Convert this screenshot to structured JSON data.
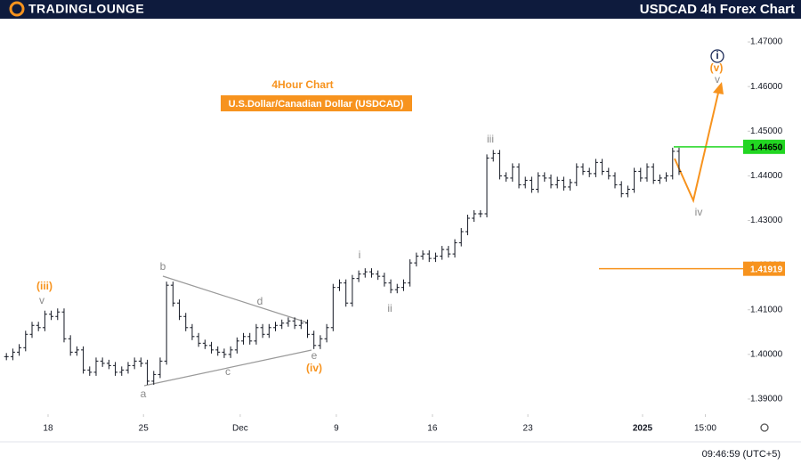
{
  "chart_data": {
    "type": "ohlc",
    "brand": "TRADINGLOUNGE",
    "title": "USDCAD 4h Forex Chart",
    "subtitle": "4Hour Chart",
    "instrument": "U.S.Dollar/Canadian Dollar (USDCAD)",
    "timestamp": "09:46:59 (UTC+5)",
    "color": "#131722",
    "values": [
      1.3995,
      1.4005,
      1.4015,
      1.4045,
      1.4065,
      1.406,
      1.409,
      1.4085,
      1.4095,
      1.4035,
      1.4005,
      1.401,
      1.3965,
      1.396,
      1.3985,
      1.398,
      1.3975,
      1.396,
      1.3965,
      1.3975,
      1.3985,
      1.398,
      1.394,
      1.3955,
      1.3985,
      1.4155,
      1.4115,
      1.4085,
      1.406,
      1.404,
      1.4025,
      1.402,
      1.401,
      1.4005,
      1.4,
      1.401,
      1.403,
      1.404,
      1.403,
      1.406,
      1.4045,
      1.406,
      1.4065,
      1.407,
      1.4075,
      1.4065,
      1.407,
      1.4045,
      1.402,
      1.4035,
      1.406,
      1.415,
      1.416,
      1.4115,
      1.417,
      1.418,
      1.4185,
      1.418,
      1.4175,
      1.416,
      1.4145,
      1.415,
      1.416,
      1.4205,
      1.422,
      1.4225,
      1.4215,
      1.422,
      1.4235,
      1.4225,
      1.425,
      1.4275,
      1.4305,
      1.4315,
      1.4315,
      1.444,
      1.445,
      1.44,
      1.4395,
      1.442,
      1.438,
      1.439,
      1.437,
      1.44,
      1.4395,
      1.438,
      1.439,
      1.4375,
      1.4385,
      1.442,
      1.441,
      1.4405,
      1.443,
      1.441,
      1.44,
      1.438,
      1.436,
      1.437,
      1.441,
      1.4395,
      1.442,
      1.439,
      1.4395,
      1.44,
      1.4455,
      1.441
    ],
    "xlim": [
      -1,
      115.7
    ],
    "xticks": [
      {
        "value": 6.5,
        "label": "18"
      },
      {
        "value": 21.4,
        "label": "25"
      },
      {
        "value": 36.5,
        "label": "Dec"
      },
      {
        "value": 51.5,
        "label": "9"
      },
      {
        "value": 66.5,
        "label": "16"
      },
      {
        "value": 81.4,
        "label": "23"
      },
      {
        "value": 99.3,
        "label": "2025"
      },
      {
        "value": 109.1,
        "label": "15:00"
      }
    ],
    "ylim": [
      1.3866,
      1.4754
    ],
    "yticks": [
      {
        "value": 1.39,
        "label": "1.39000"
      },
      {
        "value": 1.4,
        "label": "1.40000"
      },
      {
        "value": 1.41,
        "label": "1.41000"
      },
      {
        "value": 1.42,
        "label": "1.42000"
      },
      {
        "value": 1.43,
        "label": "1.43000"
      },
      {
        "value": 1.44,
        "label": "1.44000"
      },
      {
        "value": 1.45,
        "label": "1.45000"
      },
      {
        "value": 1.46,
        "label": "1.46000"
      },
      {
        "value": 1.47,
        "label": "1.47000"
      }
    ],
    "levels": [
      {
        "value": 1.4465,
        "label": "1.44650",
        "color": "#22d622"
      },
      {
        "value": 1.41919,
        "label": "1.41919",
        "color": "#f7931e"
      }
    ],
    "wave_labels": [
      {
        "text": "(iii)",
        "color": "#f7931e"
      },
      {
        "text": "v",
        "color": "#8a8a8a"
      },
      {
        "text": "b",
        "color": "#8a8a8a"
      },
      {
        "text": "a",
        "color": "#8a8a8a"
      },
      {
        "text": "c",
        "color": "#8a8a8a"
      },
      {
        "text": "d",
        "color": "#8a8a8a"
      },
      {
        "text": "e",
        "color": "#8a8a8a"
      },
      {
        "text": "(iv)",
        "color": "#f7931e"
      },
      {
        "text": "i",
        "color": "#8a8a8a"
      },
      {
        "text": "ii",
        "color": "#8a8a8a"
      },
      {
        "text": "iii",
        "color": "#8a8a8a"
      },
      {
        "text": "iv",
        "color": "#8a8a8a"
      },
      {
        "text": "(v)",
        "color": "#f7931e"
      },
      {
        "text": "v",
        "color": "#8a8a8a"
      },
      {
        "text": "i",
        "color": "#1b2a57"
      }
    ]
  }
}
